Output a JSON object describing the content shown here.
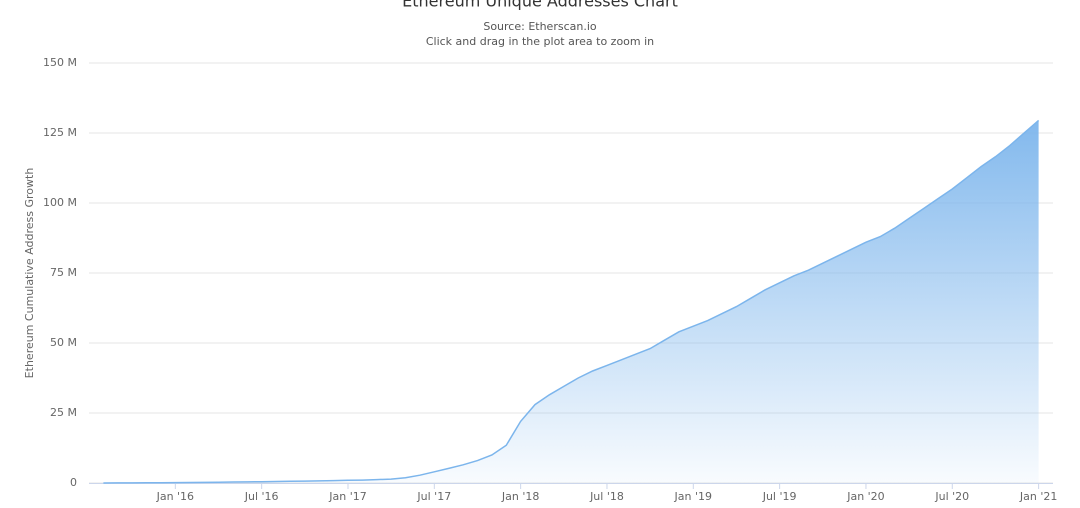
{
  "chart_data": {
    "type": "area",
    "title": "Ethereum Unique Addresses Chart",
    "subtitle": [
      "Source: Etherscan.io",
      "Click and drag in the plot area to zoom in"
    ],
    "y_label": "Ethereum Cumulative Address Growth",
    "x": [
      "2015-08",
      "2015-09",
      "2015-10",
      "2015-11",
      "2015-12",
      "2016-01",
      "2016-02",
      "2016-03",
      "2016-04",
      "2016-05",
      "2016-06",
      "2016-07",
      "2016-08",
      "2016-09",
      "2016-10",
      "2016-11",
      "2016-12",
      "2017-01",
      "2017-02",
      "2017-03",
      "2017-04",
      "2017-05",
      "2017-06",
      "2017-07",
      "2017-08",
      "2017-09",
      "2017-10",
      "2017-11",
      "2017-12",
      "2018-01",
      "2018-02",
      "2018-03",
      "2018-04",
      "2018-05",
      "2018-06",
      "2018-07",
      "2018-08",
      "2018-09",
      "2018-10",
      "2018-11",
      "2018-12",
      "2019-01",
      "2019-02",
      "2019-03",
      "2019-04",
      "2019-05",
      "2019-06",
      "2019-07",
      "2019-08",
      "2019-09",
      "2019-10",
      "2019-11",
      "2019-12",
      "2020-01",
      "2020-02",
      "2020-03",
      "2020-04",
      "2020-05",
      "2020-06",
      "2020-07",
      "2020-08",
      "2020-09",
      "2020-10",
      "2020-11",
      "2020-12",
      "2021-01"
    ],
    "values": [
      0.01,
      0.02,
      0.04,
      0.07,
      0.1,
      0.13,
      0.17,
      0.22,
      0.28,
      0.34,
      0.4,
      0.47,
      0.53,
      0.6,
      0.68,
      0.76,
      0.85,
      0.95,
      1.05,
      1.2,
      1.4,
      1.9,
      2.8,
      4,
      5.2,
      6.5,
      8,
      10,
      13.5,
      22,
      28,
      31.5,
      34.5,
      37.5,
      40,
      42,
      44,
      46,
      48,
      51,
      54,
      56,
      58,
      60.5,
      63,
      66,
      69,
      71.5,
      74,
      76,
      78.5,
      81,
      83.5,
      86,
      88,
      91,
      94.5,
      98,
      101.5,
      105,
      109,
      113,
      116.5,
      120.5,
      125,
      129.5
    ],
    "color": "#7cb5ec",
    "xlim": [
      "2015-07",
      "2021-02"
    ],
    "xticks": [
      {
        "value": "2016-01",
        "label": "Jan '16"
      },
      {
        "value": "2016-07",
        "label": "Jul '16"
      },
      {
        "value": "2017-01",
        "label": "Jan '17"
      },
      {
        "value": "2017-07",
        "label": "Jul '17"
      },
      {
        "value": "2018-01",
        "label": "Jan '18"
      },
      {
        "value": "2018-07",
        "label": "Jul '18"
      },
      {
        "value": "2019-01",
        "label": "Jan '19"
      },
      {
        "value": "2019-07",
        "label": "Jul '19"
      },
      {
        "value": "2020-01",
        "label": "Jan '20"
      },
      {
        "value": "2020-07",
        "label": "Jul '20"
      },
      {
        "value": "2021-01",
        "label": "Jan '21"
      }
    ],
    "ylim": [
      0,
      150
    ],
    "yticks": [
      0,
      {
        "value": 25,
        "label": "25 M"
      },
      {
        "value": 50,
        "label": "50 M"
      },
      {
        "value": 75,
        "label": "75 M"
      },
      {
        "value": 100,
        "label": "100 M"
      },
      {
        "value": 125,
        "label": "125 M"
      },
      {
        "value": 150,
        "label": "150 M"
      }
    ],
    "grid": true
  }
}
